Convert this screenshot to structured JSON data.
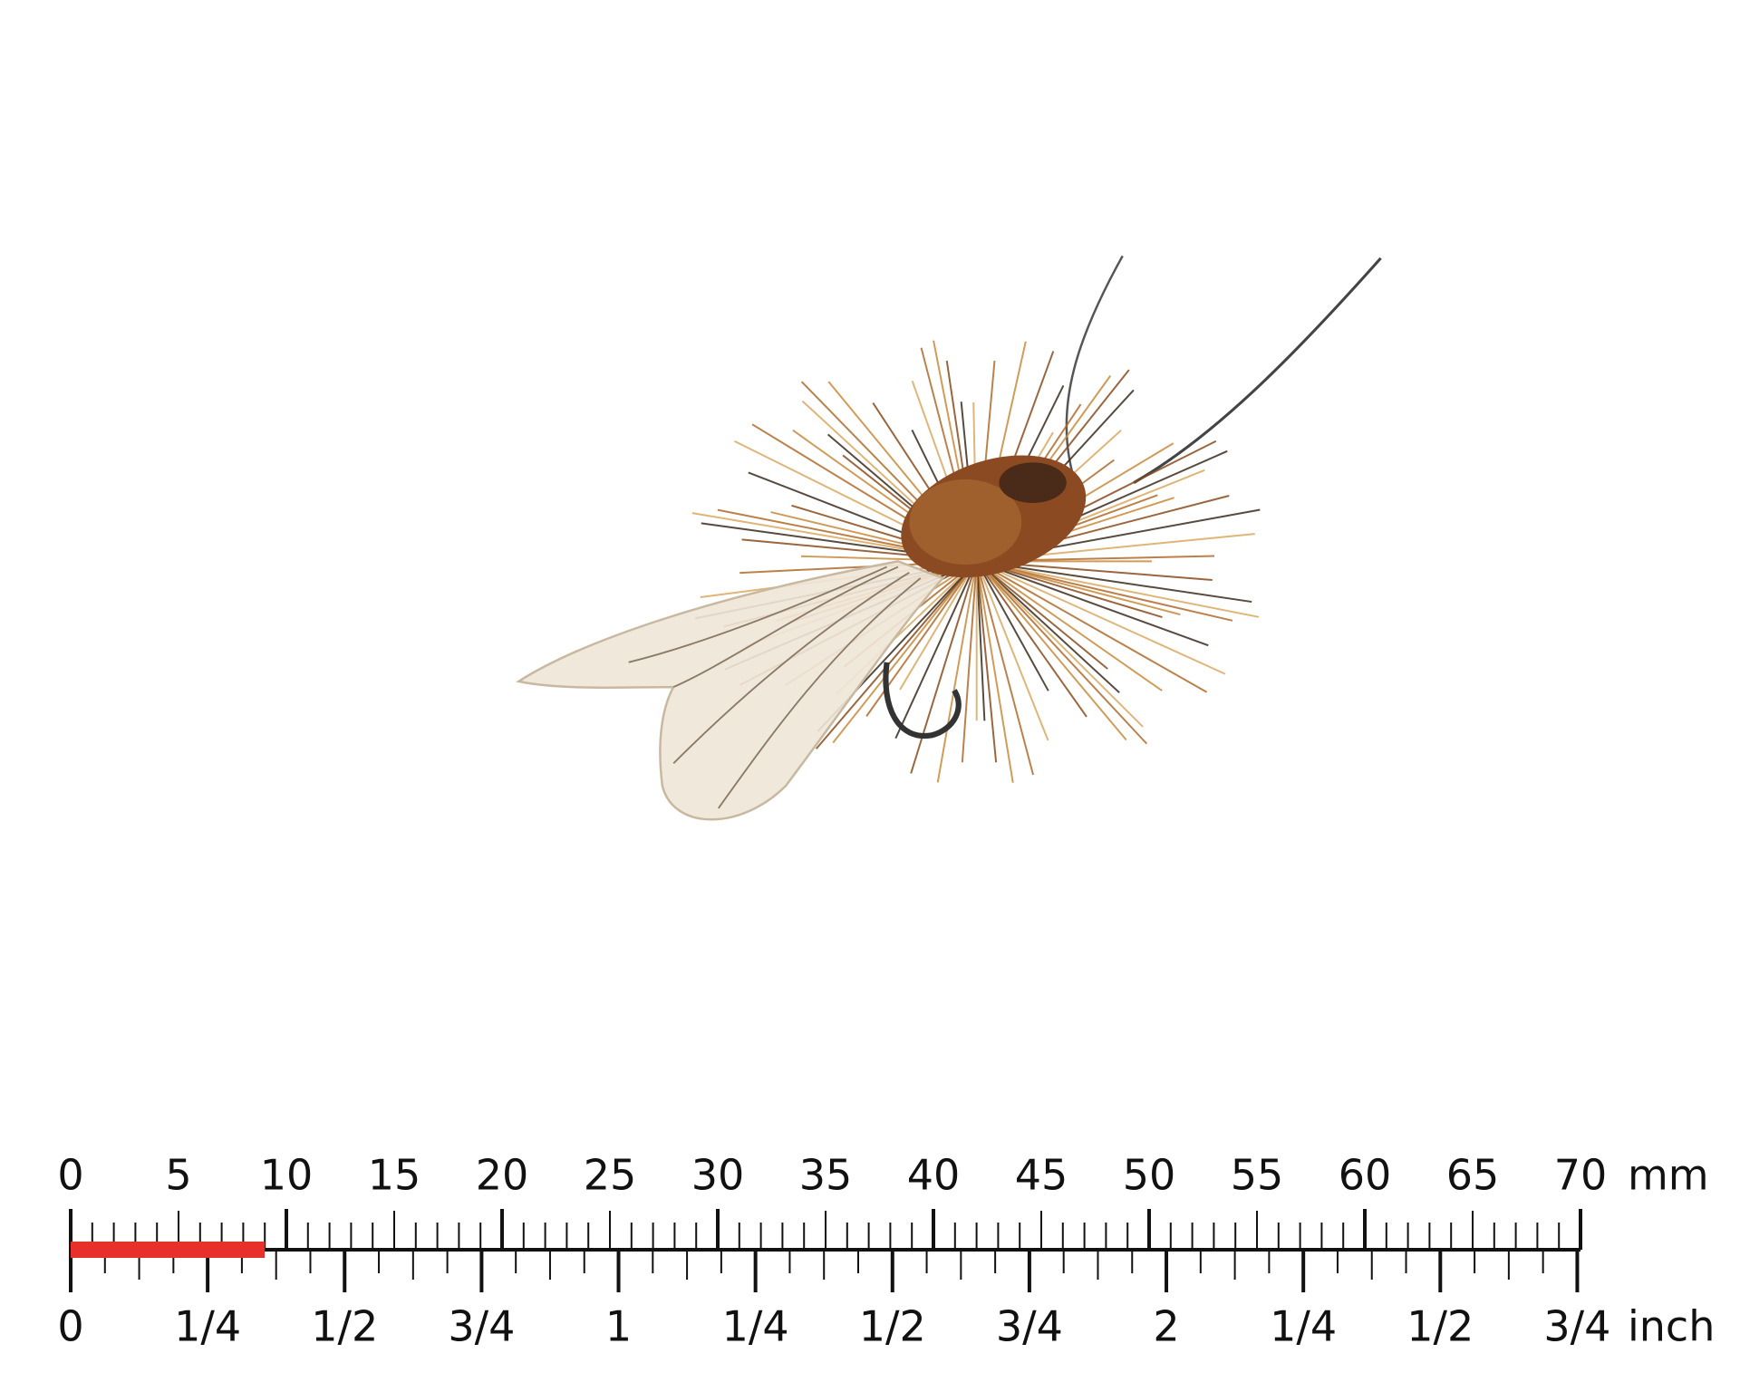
{
  "ruler": {
    "mm_labels": [
      0,
      5,
      10,
      15,
      20,
      25,
      30,
      35,
      40,
      45,
      50,
      55,
      60,
      65,
      70
    ],
    "mm_unit": "mm",
    "inch_labels": [
      "0",
      "1/4",
      "1/2",
      "3/4",
      "1",
      "1/4",
      "1/2",
      "3/4",
      "2",
      "1/4",
      "1/2",
      "3/4"
    ],
    "inch_unit": "inch",
    "marker_mm": 9
  }
}
